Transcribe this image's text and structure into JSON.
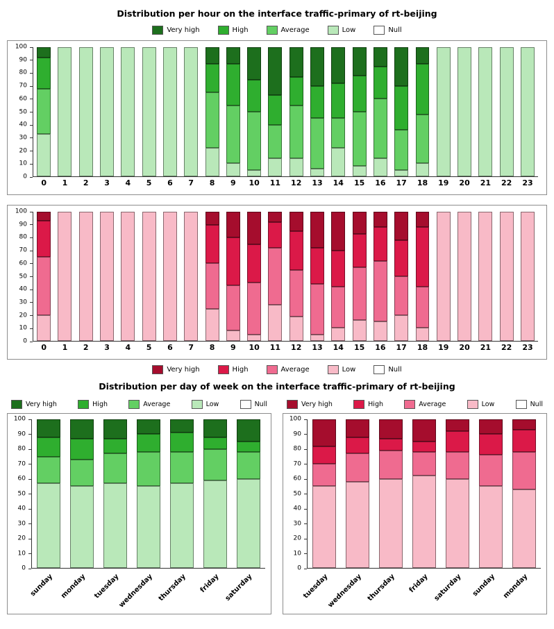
{
  "sections": {
    "hourly": {
      "title": "Distribution per hour on the interface traffic-primary of rt-beijing"
    },
    "daily": {
      "title": "Distribution per day of week on the interface traffic-primary of rt-beijing"
    }
  },
  "palette": {
    "green": {
      "very_high": "#1d6f1d",
      "high": "#2fae2f",
      "average": "#63cf63",
      "low": "#b9e8b9",
      "null": "#ffffff"
    },
    "red": {
      "very_high": "#a50d2d",
      "high": "#db1948",
      "average": "#ef6b90",
      "low": "#f8bac7",
      "null": "#ffffff"
    }
  },
  "chart_data": [
    {
      "type": "bar",
      "stacked": true,
      "title": "Distribution per hour on the interface traffic-primary of rt-beijing",
      "palette_name": "green",
      "ylim": [
        0,
        100
      ],
      "ytick_step": 10,
      "legend_position": "top",
      "categories": [
        "0",
        "1",
        "2",
        "3",
        "4",
        "5",
        "6",
        "7",
        "8",
        "9",
        "10",
        "11",
        "12",
        "13",
        "14",
        "15",
        "16",
        "17",
        "18",
        "19",
        "20",
        "21",
        "22",
        "23"
      ],
      "series": [
        {
          "name": "Very high",
          "color": "#1d6f1d",
          "values": [
            8,
            0,
            0,
            0,
            0,
            0,
            0,
            0,
            13,
            13,
            25,
            37,
            23,
            30,
            28,
            22,
            15,
            30,
            13,
            0,
            0,
            0,
            0,
            0
          ]
        },
        {
          "name": "High",
          "color": "#2fae2f",
          "values": [
            24,
            0,
            0,
            0,
            0,
            0,
            0,
            0,
            22,
            32,
            25,
            23,
            22,
            25,
            27,
            28,
            25,
            34,
            39,
            0,
            0,
            0,
            0,
            0
          ]
        },
        {
          "name": "Average",
          "color": "#63cf63",
          "values": [
            35,
            0,
            0,
            0,
            0,
            0,
            0,
            0,
            43,
            45,
            45,
            26,
            41,
            39,
            23,
            42,
            46,
            31,
            38,
            0,
            0,
            0,
            0,
            0
          ]
        },
        {
          "name": "Low",
          "color": "#b9e8b9",
          "values": [
            33,
            100,
            100,
            100,
            100,
            100,
            100,
            100,
            22,
            10,
            5,
            14,
            14,
            6,
            22,
            8,
            14,
            5,
            10,
            100,
            100,
            100,
            100,
            100
          ]
        },
        {
          "name": "Null",
          "color": "#ffffff",
          "values": [
            0,
            0,
            0,
            0,
            0,
            0,
            0,
            0,
            0,
            0,
            0,
            0,
            0,
            0,
            0,
            0,
            0,
            0,
            0,
            0,
            0,
            0,
            0,
            0
          ]
        }
      ]
    },
    {
      "type": "bar",
      "stacked": true,
      "title": "Distribution per hour on the interface traffic-primary of rt-beijing",
      "palette_name": "red",
      "ylim": [
        0,
        100
      ],
      "ytick_step": 10,
      "legend_position": "bottom",
      "categories": [
        "0",
        "1",
        "2",
        "3",
        "4",
        "5",
        "6",
        "7",
        "8",
        "9",
        "10",
        "11",
        "12",
        "13",
        "14",
        "15",
        "16",
        "17",
        "18",
        "19",
        "20",
        "21",
        "22",
        "23"
      ],
      "series": [
        {
          "name": "Very high",
          "color": "#a50d2d",
          "values": [
            7,
            0,
            0,
            0,
            0,
            0,
            0,
            0,
            10,
            20,
            25,
            8,
            15,
            28,
            30,
            17,
            12,
            22,
            12,
            0,
            0,
            0,
            0,
            0
          ]
        },
        {
          "name": "High",
          "color": "#db1948",
          "values": [
            28,
            0,
            0,
            0,
            0,
            0,
            0,
            0,
            30,
            37,
            30,
            20,
            30,
            28,
            28,
            26,
            26,
            28,
            46,
            0,
            0,
            0,
            0,
            0
          ]
        },
        {
          "name": "Average",
          "color": "#ef6b90",
          "values": [
            45,
            0,
            0,
            0,
            0,
            0,
            0,
            0,
            35,
            35,
            40,
            44,
            36,
            39,
            32,
            41,
            47,
            30,
            32,
            0,
            0,
            0,
            0,
            0
          ]
        },
        {
          "name": "Low",
          "color": "#f8bac7",
          "values": [
            20,
            100,
            100,
            100,
            100,
            100,
            100,
            100,
            25,
            8,
            5,
            28,
            19,
            5,
            10,
            16,
            15,
            20,
            10,
            100,
            100,
            100,
            100,
            100
          ]
        },
        {
          "name": "Null",
          "color": "#ffffff",
          "values": [
            0,
            0,
            0,
            0,
            0,
            0,
            0,
            0,
            0,
            0,
            0,
            0,
            0,
            0,
            0,
            0,
            0,
            0,
            0,
            0,
            0,
            0,
            0,
            0
          ]
        }
      ]
    },
    {
      "type": "bar",
      "stacked": true,
      "title": "Distribution per day of week on the interface traffic-primary of rt-beijing",
      "palette_name": "green",
      "ylim": [
        0,
        100
      ],
      "ytick_step": 10,
      "legend_position": "top",
      "categories": [
        "sunday",
        "monday",
        "tuesday",
        "wednesday",
        "thursday",
        "friday",
        "saturday"
      ],
      "series": [
        {
          "name": "Very high",
          "color": "#1d6f1d",
          "values": [
            12,
            13,
            13,
            10,
            9,
            12,
            15
          ]
        },
        {
          "name": "High",
          "color": "#2fae2f",
          "values": [
            13,
            14,
            10,
            12,
            13,
            8,
            7
          ]
        },
        {
          "name": "Average",
          "color": "#63cf63",
          "values": [
            18,
            18,
            20,
            23,
            21,
            21,
            18
          ]
        },
        {
          "name": "Low",
          "color": "#b9e8b9",
          "values": [
            57,
            55,
            57,
            55,
            57,
            59,
            60
          ]
        },
        {
          "name": "Null",
          "color": "#ffffff",
          "values": [
            0,
            0,
            0,
            0,
            0,
            0,
            0
          ]
        }
      ]
    },
    {
      "type": "bar",
      "stacked": true,
      "title": "Distribution per day of week on the interface traffic-primary of rt-beijing",
      "palette_name": "red",
      "ylim": [
        0,
        100
      ],
      "ytick_step": 10,
      "legend_position": "top",
      "categories": [
        "tuesday",
        "wednesday",
        "thursday",
        "friday",
        "saturday",
        "sunday",
        "monday"
      ],
      "series": [
        {
          "name": "Very high",
          "color": "#a50d2d",
          "values": [
            18,
            12,
            13,
            15,
            8,
            10,
            7
          ]
        },
        {
          "name": "High",
          "color": "#db1948",
          "values": [
            12,
            11,
            8,
            7,
            14,
            14,
            15
          ]
        },
        {
          "name": "Average",
          "color": "#ef6b90",
          "values": [
            15,
            19,
            19,
            16,
            18,
            21,
            25
          ]
        },
        {
          "name": "Low",
          "color": "#f8bac7",
          "values": [
            55,
            58,
            60,
            62,
            60,
            55,
            53
          ]
        },
        {
          "name": "Null",
          "color": "#ffffff",
          "values": [
            0,
            0,
            0,
            0,
            0,
            0,
            0
          ]
        }
      ]
    }
  ]
}
